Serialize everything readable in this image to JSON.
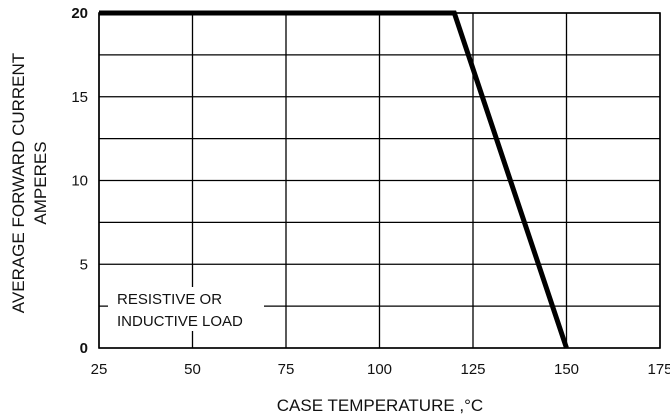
{
  "chart_data": {
    "type": "line",
    "title": "",
    "xlabel": "CASE TEMPERATURE ,°C",
    "ylabel_lines": [
      "AVERAGE FORWARD CURRENT",
      "AMPERES"
    ],
    "xlim": [
      25,
      175
    ],
    "ylim": [
      0,
      20
    ],
    "x_ticks": [
      25,
      50,
      75,
      100,
      125,
      150,
      175
    ],
    "y_ticks": [
      0,
      5,
      10,
      15,
      20
    ],
    "x_minor_step": 25,
    "y_minor_step": 2.5,
    "grid": true,
    "series": [
      {
        "x": [
          25,
          120,
          150
        ],
        "y": [
          20,
          20,
          0
        ]
      }
    ],
    "annotations": [
      {
        "lines": [
          "RESISTIVE OR",
          "INDUCTIVE LOAD"
        ]
      }
    ],
    "colors": {
      "line": "#000000",
      "grid": "#000000"
    }
  }
}
